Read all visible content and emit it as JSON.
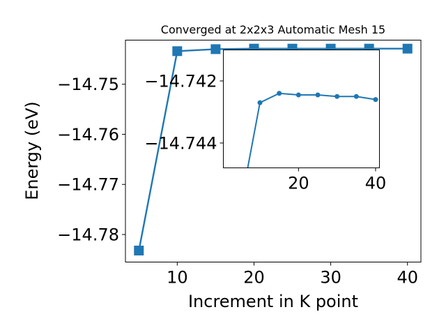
{
  "chart_data": [
    {
      "type": "line",
      "title": "Converged at 2x2x3 Automatic Mesh 15",
      "xlabel": "Increment in K point",
      "ylabel": "Energy (eV)",
      "x": [
        5,
        10,
        15,
        20,
        25,
        30,
        35,
        40
      ],
      "series": [
        {
          "values": [
            -14.7832,
            -14.7434,
            -14.743,
            -14.7429,
            -14.7429,
            -14.7429,
            -14.7429,
            -14.7429
          ]
        }
      ],
      "marker": "square",
      "color": "#1f77b4",
      "xlim": [
        3.25,
        41.75
      ],
      "ylim": [
        -14.7855,
        -14.7412
      ],
      "xticks": [
        10,
        20,
        30,
        40
      ],
      "xtick_labels": [
        "10",
        "20",
        "30",
        "40"
      ],
      "yticks": [
        -14.75,
        -14.76,
        -14.77,
        -14.78
      ],
      "ytick_labels": [
        "−14.75",
        "−14.76",
        "−14.77",
        "−14.78"
      ],
      "grid": false
    },
    {
      "type": "line",
      "role": "inset",
      "x": [
        5,
        10,
        15,
        20,
        25,
        30,
        35,
        40
      ],
      "series": [
        {
          "values": [
            -14.746,
            -14.7427,
            -14.7424,
            -14.74245,
            -14.74245,
            -14.7425,
            -14.7425,
            -14.7426
          ]
        }
      ],
      "marker": "circle",
      "color": "#1f77b4",
      "xlim": [
        0.5,
        41.0
      ],
      "ylim": [
        -14.7448,
        -14.741
      ],
      "xticks": [
        20,
        40
      ],
      "xtick_labels": [
        "20",
        "40"
      ],
      "yticks": [
        -14.744,
        -14.742
      ],
      "ytick_labels": [
        "−14.744",
        "−14.742"
      ],
      "grid": false
    }
  ]
}
